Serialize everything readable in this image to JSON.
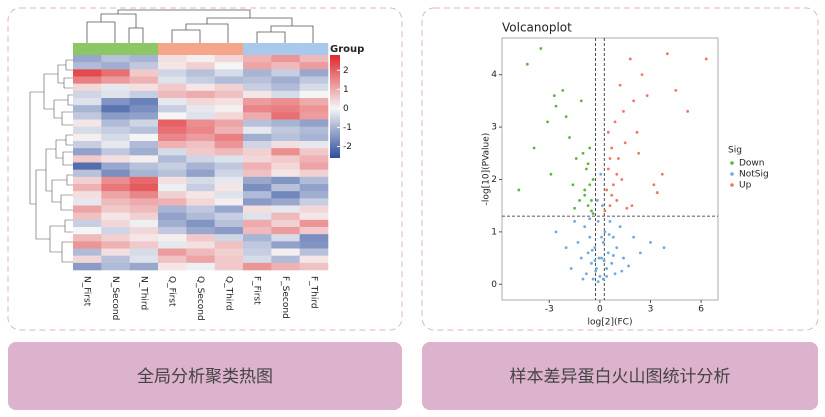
{
  "chart_data": [
    {
      "type": "heatmap",
      "caption": "全局分析聚类热图",
      "legend_title": "Group",
      "categories": [
        "N_First",
        "N_Second",
        "N_Third",
        "Q_First",
        "Q_Second",
        "Q_Third",
        "F_First",
        "F_Second",
        "F_Third"
      ],
      "column_groups": [
        0,
        0,
        0,
        1,
        1,
        1,
        2,
        2,
        2
      ],
      "group_colors": [
        "#8cc665",
        "#f4a58a",
        "#a9c9ec"
      ],
      "colors": [
        "#2d4d9e",
        "#f5f5f5",
        "#e0262b"
      ],
      "clim": [
        -2.6,
        2.8
      ],
      "cticks": [
        2,
        1,
        0,
        -1,
        -2
      ],
      "values": [
        [
          -1.2,
          -0.8,
          -1.0,
          0.3,
          0.1,
          0.4,
          0.9,
          1.3,
          0.8
        ],
        [
          -0.9,
          -1.1,
          -0.7,
          0.2,
          0.5,
          0.0,
          1.1,
          0.8,
          1.2
        ],
        [
          2.3,
          1.8,
          0.6,
          -0.5,
          -0.8,
          -0.4,
          -1.0,
          -0.6,
          -1.2
        ],
        [
          1.6,
          1.2,
          0.9,
          -0.3,
          -0.6,
          -0.9,
          -0.8,
          -1.1,
          -0.7
        ],
        [
          0.4,
          -0.2,
          0.3,
          0.6,
          0.2,
          0.5,
          -0.6,
          -0.9,
          -0.4
        ],
        [
          -0.5,
          -0.3,
          -0.6,
          0.8,
          1.0,
          0.7,
          0.2,
          -0.4,
          0.0
        ],
        [
          -0.3,
          -1.5,
          -1.8,
          -0.2,
          0.4,
          0.3,
          1.2,
          1.4,
          1.0
        ],
        [
          -1.0,
          -2.0,
          -1.6,
          -0.6,
          -0.2,
          0.1,
          1.5,
          1.6,
          1.3
        ],
        [
          -0.7,
          -1.4,
          -1.3,
          0.0,
          -0.3,
          0.4,
          1.0,
          1.8,
          1.2
        ],
        [
          0.2,
          -0.9,
          -0.5,
          2.0,
          1.4,
          1.1,
          -0.8,
          -1.0,
          -1.3
        ],
        [
          -0.4,
          -0.6,
          -0.8,
          1.8,
          1.5,
          0.9,
          -0.2,
          -0.7,
          -0.9
        ],
        [
          0.1,
          -0.4,
          0.0,
          1.5,
          1.2,
          1.6,
          -1.1,
          -0.8,
          -1.0
        ],
        [
          -0.6,
          -0.2,
          -0.9,
          0.9,
          0.7,
          1.3,
          -0.5,
          0.3,
          -0.2
        ],
        [
          -1.3,
          -0.7,
          -1.1,
          -0.4,
          0.6,
          0.8,
          0.5,
          1.4,
          0.6
        ],
        [
          0.6,
          0.3,
          0.1,
          -0.9,
          -0.5,
          -0.3,
          0.4,
          0.6,
          0.9
        ],
        [
          -2.1,
          -1.2,
          -0.8,
          -0.6,
          -1.0,
          -0.7,
          0.9,
          0.4,
          1.1
        ],
        [
          -0.8,
          -1.6,
          -1.0,
          -0.8,
          -1.3,
          -0.5,
          0.7,
          0.2,
          0.5
        ],
        [
          0.5,
          1.4,
          1.9,
          0.3,
          -0.4,
          -0.2,
          -1.2,
          -1.5,
          -0.9
        ],
        [
          0.9,
          1.7,
          2.1,
          -0.1,
          -0.6,
          0.2,
          -1.6,
          -0.8,
          -1.3
        ],
        [
          0.3,
          1.1,
          1.5,
          0.5,
          0.2,
          -0.3,
          -0.9,
          -1.7,
          -1.1
        ],
        [
          -0.2,
          0.8,
          1.0,
          0.9,
          0.4,
          0.1,
          -1.4,
          -1.2,
          -0.6
        ],
        [
          1.1,
          0.6,
          0.8,
          -1.0,
          -0.7,
          -1.2,
          0.3,
          -0.2,
          0.4
        ],
        [
          0.7,
          0.2,
          0.5,
          -1.3,
          -0.9,
          -0.6,
          -0.3,
          0.8,
          0.2
        ],
        [
          -0.6,
          0.4,
          -0.1,
          -1.1,
          -1.5,
          -0.8,
          1.0,
          0.5,
          1.3
        ],
        [
          0.0,
          -0.5,
          0.4,
          -0.7,
          -1.2,
          -1.4,
          0.8,
          1.2,
          0.6
        ],
        [
          0.8,
          0.5,
          0.2,
          0.1,
          0.6,
          -0.5,
          -1.0,
          -0.4,
          -1.6
        ],
        [
          1.3,
          0.9,
          0.6,
          -0.2,
          0.3,
          0.7,
          -0.7,
          -1.3,
          -1.5
        ],
        [
          -0.9,
          0.3,
          -0.4,
          1.2,
          0.8,
          0.5,
          -0.6,
          0.1,
          -0.8
        ],
        [
          0.4,
          -0.8,
          -0.3,
          0.7,
          1.1,
          0.6,
          -0.4,
          -0.9,
          0.2
        ],
        [
          -1.4,
          -0.9,
          -1.2,
          0.2,
          -0.1,
          0.6,
          1.3,
          0.9,
          0.7
        ]
      ]
    },
    {
      "type": "scatter",
      "caption": "样本差异蛋白火山图统计分析",
      "title": "Volcanoplot",
      "x_label": "log[2](FC)",
      "y_label": "-log[10](PValue)",
      "legend_title": "Sig",
      "xlim": [
        -5.8,
        7.0
      ],
      "xticks": [
        -3,
        0,
        3,
        6
      ],
      "ylim": [
        -0.3,
        4.7
      ],
      "yticks": [
        0,
        1,
        2,
        3,
        4
      ],
      "hlines": [
        1.3
      ],
      "vlines": [
        -0.26,
        0.26
      ],
      "series": [
        {
          "name": "Down",
          "color": "#5db544",
          "x": [
            -4.8,
            -4.3,
            -3.9,
            -3.5,
            -3.1,
            -2.9,
            -2.6,
            -2.2,
            -2.0,
            -1.8,
            -1.6,
            -1.4,
            -1.2,
            -1.0,
            -0.9,
            -0.8,
            -0.7,
            -0.6,
            -0.5,
            -0.4,
            -1.1,
            -0.7,
            -0.5,
            -1.5,
            -0.9,
            -2.7,
            -0.6,
            -0.4
          ],
          "values": [
            1.8,
            4.2,
            2.6,
            4.5,
            3.1,
            2.1,
            3.4,
            3.7,
            3.2,
            2.8,
            1.9,
            2.4,
            1.6,
            2.5,
            1.7,
            2.2,
            1.5,
            1.9,
            1.4,
            2.0,
            3.5,
            2.3,
            1.6,
            1.45,
            1.8,
            3.6,
            2.6,
            1.35
          ]
        },
        {
          "name": "NotSig",
          "color": "#6fa8dc",
          "x": [
            -2.6,
            -2.0,
            -1.7,
            -1.5,
            -1.3,
            -1.1,
            -0.9,
            -0.8,
            -0.7,
            -0.6,
            -0.5,
            -0.4,
            -0.3,
            -0.2,
            -0.1,
            0.0,
            0.1,
            0.2,
            0.3,
            0.4,
            0.5,
            0.6,
            0.7,
            0.8,
            0.9,
            1.0,
            1.2,
            1.4,
            1.7,
            2.0,
            2.4,
            3.0,
            3.8,
            -0.15,
            0.05,
            0.15,
            -0.05,
            -0.25,
            0.25,
            -1.0,
            -0.6,
            0.4,
            0.8,
            -0.3,
            0.1,
            -0.1,
            0.2,
            -0.45,
            0.55,
            1.3
          ],
          "values": [
            1.0,
            0.7,
            0.3,
            1.2,
            0.8,
            0.5,
            1.1,
            0.2,
            0.6,
            0.9,
            0.4,
            0.1,
            0.7,
            0.3,
            0.05,
            0.15,
            0.5,
            0.8,
            1.0,
            0.3,
            0.6,
            1.2,
            0.4,
            0.9,
            0.2,
            0.7,
            1.1,
            0.5,
            0.35,
            0.9,
            0.6,
            0.8,
            0.7,
            1.6,
            2.1,
            1.5,
            0.5,
            0.25,
            0.45,
            0.1,
            1.25,
            0.15,
            0.55,
            0.45,
            0.9,
            1.2,
            0.1,
            0.65,
            0.95,
            0.25
          ]
        },
        {
          "name": "Up",
          "color": "#f0765f",
          "x": [
            0.3,
            0.4,
            0.5,
            0.6,
            0.7,
            0.8,
            0.9,
            1.0,
            1.1,
            1.2,
            1.3,
            1.5,
            1.6,
            1.8,
            2.0,
            2.2,
            2.5,
            2.8,
            3.2,
            3.7,
            4.0,
            4.5,
            5.2,
            6.3,
            0.5,
            0.7,
            1.0,
            1.4,
            2.3,
            3.4,
            0.6,
            1.9
          ],
          "values": [
            1.4,
            1.8,
            2.2,
            1.5,
            2.6,
            1.9,
            3.1,
            1.6,
            2.4,
            3.8,
            2.0,
            2.7,
            1.45,
            4.3,
            3.5,
            2.9,
            4.0,
            3.6,
            1.9,
            2.1,
            4.4,
            3.7,
            3.3,
            4.3,
            2.9,
            1.7,
            2.1,
            3.3,
            2.5,
            1.75,
            2.4,
            1.5
          ]
        }
      ]
    }
  ]
}
